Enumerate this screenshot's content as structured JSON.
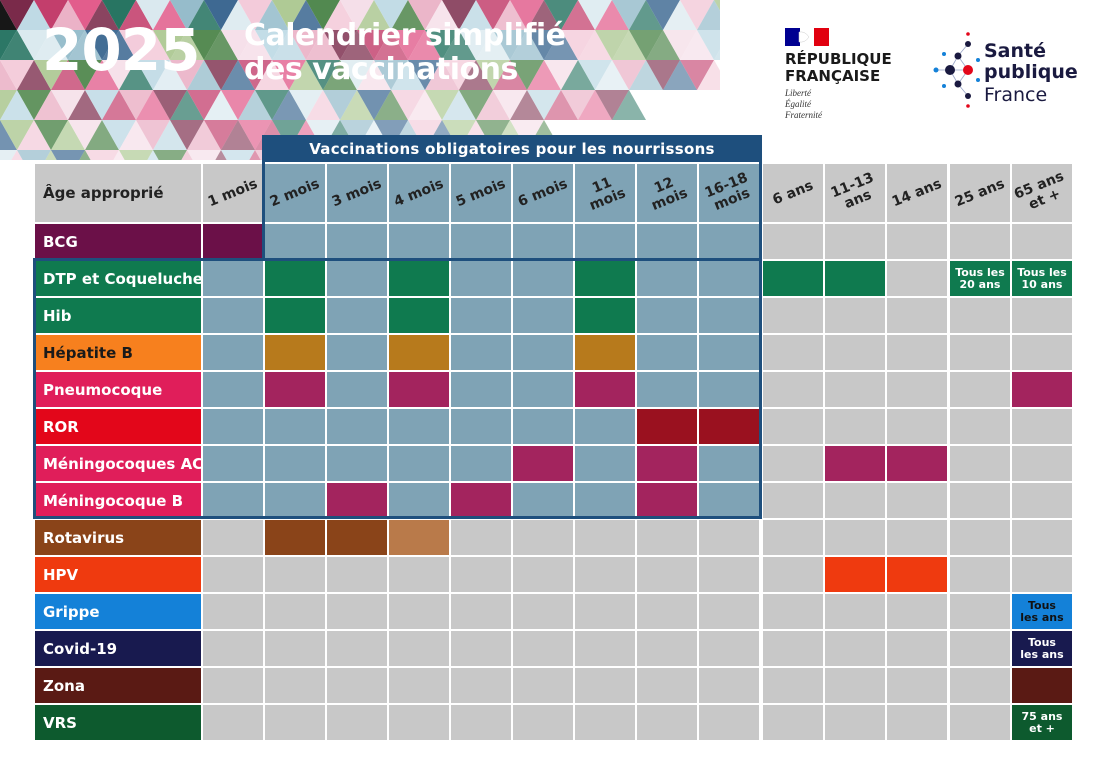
{
  "header": {
    "year": "2025",
    "title_line1": "Calendrier simplifié",
    "title_line2": "des vaccinations"
  },
  "logos": {
    "republique": {
      "name_line1": "RÉPUBLIQUE",
      "name_line2": "FRANÇAISE",
      "motto_line1": "Liberté",
      "motto_line2": "Égalité",
      "motto_line3": "Fraternité"
    },
    "sante_publique": {
      "line1": "Santé",
      "line2": "publique",
      "line3": "France"
    }
  },
  "table": {
    "age_header": "Âge approprié",
    "mandatory_label": "Vaccinations obligatoires pour les nourrissons",
    "ages": [
      "1 mois",
      "2 mois",
      "3 mois",
      "4 mois",
      "5 mois",
      "6 mois",
      "11 mois",
      "12 mois",
      "16-18\nmois",
      "6 ans",
      "11-13\nans",
      "14 ans",
      "25 ans",
      "65 ans\net +"
    ],
    "vaccines": [
      {
        "name": "BCG",
        "color": "#6b1048",
        "doses": [
          0
        ],
        "notes": []
      },
      {
        "name": "DTP et Coqueluche",
        "color": "#0f7a4f",
        "doses": [
          1,
          3,
          6,
          9,
          10
        ],
        "notes": [
          {
            "col": 12,
            "text": "Tous les\n20 ans"
          },
          {
            "col": 13,
            "text": "Tous les\n10 ans"
          }
        ]
      },
      {
        "name": "Hib",
        "color": "#0f7a4f",
        "doses": [
          1,
          3,
          6
        ],
        "notes": []
      },
      {
        "name": "Hépatite B",
        "color": "#f7801e",
        "dose_color": "#b77a1c",
        "doses": [
          1,
          3,
          6
        ],
        "notes": []
      },
      {
        "name": "Pneumocoque",
        "color": "#e01e5a",
        "dose_color": "#a3245e",
        "doses": [
          1,
          3,
          6,
          13
        ],
        "notes": []
      },
      {
        "name": "ROR",
        "color": "#e3061a",
        "dose_color": "#9a111f",
        "doses": [
          7,
          8
        ],
        "notes": []
      },
      {
        "name": "Méningocoques ACWY",
        "color": "#e01e5a",
        "dose_color": "#a3245e",
        "doses": [
          5,
          7,
          10,
          11
        ],
        "notes": []
      },
      {
        "name": "Méningocoque B",
        "color": "#e01e5a",
        "dose_color": "#a3245e",
        "doses": [
          2,
          4,
          7
        ],
        "notes": []
      },
      {
        "name": "Rotavirus",
        "color": "#8a4419",
        "doses": [
          1,
          2
        ],
        "light_doses": [
          3
        ],
        "notes": []
      },
      {
        "name": "HPV",
        "color": "#ef3a0f",
        "doses": [
          10,
          11
        ],
        "notes": []
      },
      {
        "name": "Grippe",
        "color": "#1481d8",
        "doses": [],
        "notes": [
          {
            "col": 13,
            "text": "Tous\nles ans"
          }
        ]
      },
      {
        "name": "Covid-19",
        "color": "#181a4f",
        "doses": [],
        "notes": [
          {
            "col": 13,
            "text": "Tous\nles ans"
          }
        ]
      },
      {
        "name": "Zona",
        "color": "#5a1a14",
        "doses": [
          13
        ],
        "notes": []
      },
      {
        "name": "VRS",
        "color": "#0d5a2e",
        "doses": [],
        "notes": [
          {
            "col": 13,
            "text": "75 ans\net +"
          }
        ]
      }
    ]
  },
  "colors": {
    "grey_cell": "#c8c8c8",
    "blue_cell": "#7fa3b5",
    "frame": "#1e4f7d",
    "rotavirus_light": "#b97a4a"
  }
}
